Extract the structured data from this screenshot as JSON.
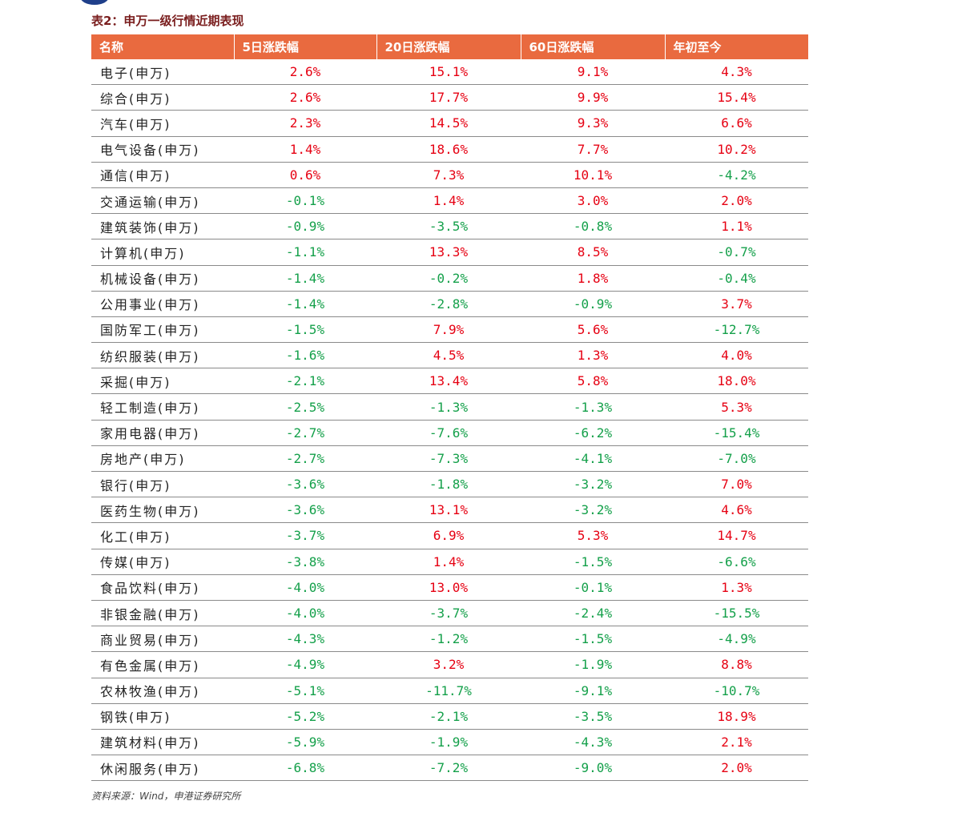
{
  "caption": "表2：申万一级行情近期表现",
  "headers": [
    "名称",
    "5日涨跌幅",
    "20日涨跌幅",
    "60日涨跌幅",
    "年初至今"
  ],
  "rows": [
    [
      "电子(申万)",
      "2.6%",
      "15.1%",
      "9.1%",
      "4.3%"
    ],
    [
      "综合(申万)",
      "2.6%",
      "17.7%",
      "9.9%",
      "15.4%"
    ],
    [
      "汽车(申万)",
      "2.3%",
      "14.5%",
      "9.3%",
      "6.6%"
    ],
    [
      "电气设备(申万)",
      "1.4%",
      "18.6%",
      "7.7%",
      "10.2%"
    ],
    [
      "通信(申万)",
      "0.6%",
      "7.3%",
      "10.1%",
      "-4.2%"
    ],
    [
      "交通运输(申万)",
      "-0.1%",
      "1.4%",
      "3.0%",
      "2.0%"
    ],
    [
      "建筑装饰(申万)",
      "-0.9%",
      "-3.5%",
      "-0.8%",
      "1.1%"
    ],
    [
      "计算机(申万)",
      "-1.1%",
      "13.3%",
      "8.5%",
      "-0.7%"
    ],
    [
      "机械设备(申万)",
      "-1.4%",
      "-0.2%",
      "1.8%",
      "-0.4%"
    ],
    [
      "公用事业(申万)",
      "-1.4%",
      "-2.8%",
      "-0.9%",
      "3.7%"
    ],
    [
      "国防军工(申万)",
      "-1.5%",
      "7.9%",
      "5.6%",
      "-12.7%"
    ],
    [
      "纺织服装(申万)",
      "-1.6%",
      "4.5%",
      "1.3%",
      "4.0%"
    ],
    [
      "采掘(申万)",
      "-2.1%",
      "13.4%",
      "5.8%",
      "18.0%"
    ],
    [
      "轻工制造(申万)",
      "-2.5%",
      "-1.3%",
      "-1.3%",
      "5.3%"
    ],
    [
      "家用电器(申万)",
      "-2.7%",
      "-7.6%",
      "-6.2%",
      "-15.4%"
    ],
    [
      "房地产(申万)",
      "-2.7%",
      "-7.3%",
      "-4.1%",
      "-7.0%"
    ],
    [
      "银行(申万)",
      "-3.6%",
      "-1.8%",
      "-3.2%",
      "7.0%"
    ],
    [
      "医药生物(申万)",
      "-3.6%",
      "13.1%",
      "-3.2%",
      "4.6%"
    ],
    [
      "化工(申万)",
      "-3.7%",
      "6.9%",
      "5.3%",
      "14.7%"
    ],
    [
      "传媒(申万)",
      "-3.8%",
      "1.4%",
      "-1.5%",
      "-6.6%"
    ],
    [
      "食品饮料(申万)",
      "-4.0%",
      "13.0%",
      "-0.1%",
      "1.3%"
    ],
    [
      "非银金融(申万)",
      "-4.0%",
      "-3.7%",
      "-2.4%",
      "-15.5%"
    ],
    [
      "商业贸易(申万)",
      "-4.3%",
      "-1.2%",
      "-1.5%",
      "-4.9%"
    ],
    [
      "有色金属(申万)",
      "-4.9%",
      "3.2%",
      "-1.9%",
      "8.8%"
    ],
    [
      "农林牧渔(申万)",
      "-5.1%",
      "-11.7%",
      "-9.1%",
      "-10.7%"
    ],
    [
      "钢铁(申万)",
      "-5.2%",
      "-2.1%",
      "-3.5%",
      "18.9%"
    ],
    [
      "建筑材料(申万)",
      "-5.9%",
      "-1.9%",
      "-4.3%",
      "2.1%"
    ],
    [
      "休闲服务(申万)",
      "-6.8%",
      "-7.2%",
      "-9.0%",
      "2.0%"
    ]
  ],
  "source": "资料来源：Wind，申港证券研究所",
  "colors": {
    "header_bg": "#e96a3f",
    "header_text": "#ffffff",
    "positive": "#e60012",
    "negative": "#14a04a",
    "caption": "#7a1e1e",
    "logo": "#1f3f8a"
  }
}
